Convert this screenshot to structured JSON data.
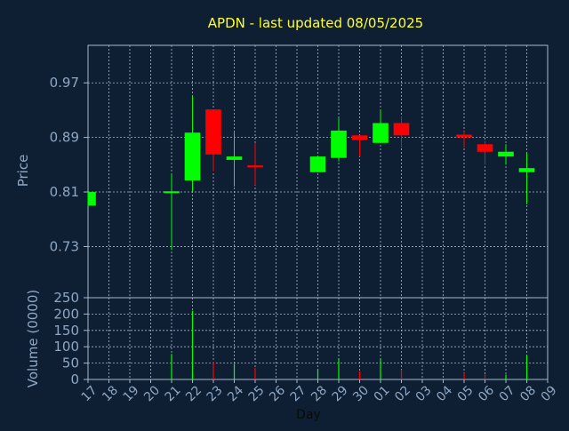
{
  "colors": {
    "background": "#0f1f33",
    "plot_background": "#0f1f33",
    "title": "#ffff33",
    "axis_text": "#8da7c4",
    "frame": "#a8b8cc",
    "grid": "#a8b8cc",
    "up": "#00ff00",
    "down": "#ff0000"
  },
  "chart_data": {
    "type": "candlestick",
    "title": "APDN - last updated 08/05/2025",
    "xlabel": "Day",
    "price_panel": {
      "ylabel": "Price",
      "ylim": [
        0.655,
        1.025
      ],
      "yticks": [
        0.73,
        0.81,
        0.89,
        0.97
      ],
      "ytick_labels": [
        "0.73",
        "0.81",
        "0.89",
        "0.97"
      ],
      "grid": true
    },
    "volume_panel": {
      "ylabel": "Volume (0000)",
      "ylim": [
        0,
        250
      ],
      "yticks": [
        0,
        50,
        100,
        150,
        200,
        250
      ],
      "ytick_labels": [
        "0",
        "50",
        "100",
        "150",
        "200",
        "250"
      ],
      "grid": true
    },
    "x_tick_labels": [
      "17",
      "18",
      "19",
      "20",
      "21",
      "22",
      "23",
      "24",
      "25",
      "26",
      "27",
      "28",
      "29",
      "30",
      "01",
      "02",
      "03",
      "04",
      "05",
      "06",
      "07",
      "08",
      "09"
    ],
    "candles": [
      {
        "i": 0,
        "open": 0.79,
        "close": 0.81,
        "high": 0.81,
        "low": 0.79,
        "volume": 0
      },
      {
        "i": 4,
        "open": 0.809,
        "close": 0.811,
        "high": 0.837,
        "low": 0.725,
        "volume": 78
      },
      {
        "i": 5,
        "open": 0.827,
        "close": 0.897,
        "high": 0.952,
        "low": 0.81,
        "volume": 210
      },
      {
        "i": 6,
        "open": 0.931,
        "close": 0.865,
        "high": 0.931,
        "low": 0.84,
        "volume": 55
      },
      {
        "i": 7,
        "open": 0.857,
        "close": 0.862,
        "high": 0.897,
        "low": 0.818,
        "volume": 48
      },
      {
        "i": 8,
        "open": 0.849,
        "close": 0.846,
        "high": 0.882,
        "low": 0.82,
        "volume": 35
      },
      {
        "i": 11,
        "open": 0.839,
        "close": 0.862,
        "high": 0.862,
        "low": 0.839,
        "volume": 32
      },
      {
        "i": 12,
        "open": 0.86,
        "close": 0.9,
        "high": 0.918,
        "low": 0.855,
        "volume": 65
      },
      {
        "i": 13,
        "open": 0.893,
        "close": 0.886,
        "high": 0.893,
        "low": 0.862,
        "volume": 25
      },
      {
        "i": 14,
        "open": 0.882,
        "close": 0.911,
        "high": 0.931,
        "low": 0.882,
        "volume": 65
      },
      {
        "i": 15,
        "open": 0.911,
        "close": 0.893,
        "high": 0.921,
        "low": 0.875,
        "volume": 30
      },
      {
        "i": 18,
        "open": 0.894,
        "close": 0.89,
        "high": 0.899,
        "low": 0.875,
        "volume": 20
      },
      {
        "i": 19,
        "open": 0.88,
        "close": 0.869,
        "high": 0.885,
        "low": 0.85,
        "volume": 15
      },
      {
        "i": 20,
        "open": 0.862,
        "close": 0.869,
        "high": 0.88,
        "low": 0.85,
        "volume": 15
      },
      {
        "i": 21,
        "open": 0.839,
        "close": 0.845,
        "high": 0.867,
        "low": 0.792,
        "volume": 75
      }
    ]
  }
}
